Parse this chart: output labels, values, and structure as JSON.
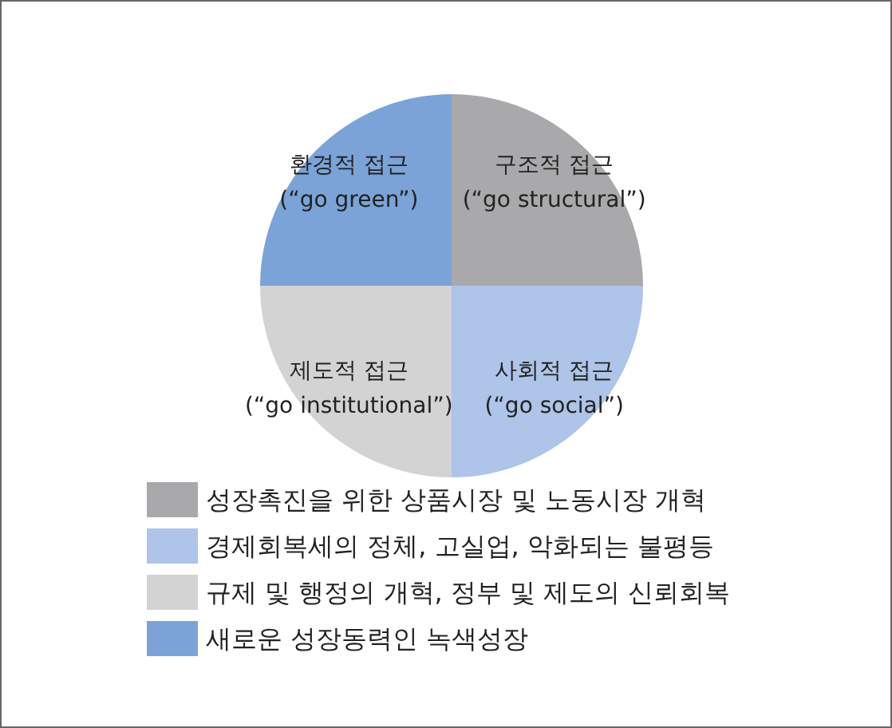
{
  "chart_data": {
    "type": "pie",
    "categories": [
      "성장촉진을 위한 상품시장 및 노동시장 개혁",
      "경제회복세의 정체, 고실업, 악화되는 불평등",
      "규제 및 행정의 개혁, 정부 및 제도의 신뢰회복",
      "새로운 성장동력인 녹색성장"
    ],
    "values": [
      25,
      25,
      25,
      25
    ],
    "colors": [
      "#a9a9ab",
      "#aec4e8",
      "#d3d3d4",
      "#7ba3d8"
    ],
    "value_labels": [
      "구조적 접근\n(“go structural”)",
      "사회적 접근\n(“go social”)",
      "제도적 접근\n(“go institutional”)",
      "환경적 접근\n(“go green”)"
    ],
    "legend": "bottom"
  }
}
